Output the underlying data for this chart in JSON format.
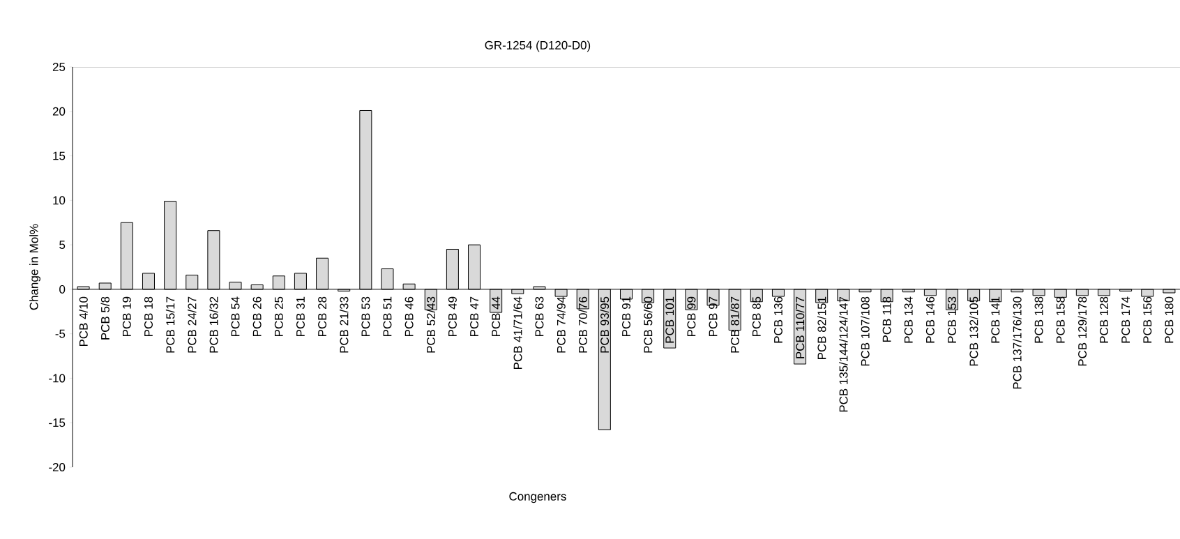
{
  "chart_data": {
    "type": "bar",
    "title": "GR-1254 (D120-D0)",
    "xlabel": "Congeners",
    "ylabel": "Change in Mol%",
    "categories": [
      "PCB 4/10",
      "PCB 5/8",
      "PCB 19",
      "PCB 18",
      "PCB 15/17",
      "PCB 24/27",
      "PCB 16/32",
      "PCB 54",
      "PCB 26",
      "PCB 25",
      "PCB 31",
      "PCB 28",
      "PCB 21/33",
      "PCB 53",
      "PCB 51",
      "PCB 46",
      "PCB 52/43",
      "PCB 49",
      "PCB 47",
      "PCB 44",
      "PCB 41/71/64",
      "PCB 63",
      "PCB 74/94",
      "PCB 70/76",
      "PCB 93/95",
      "PCB 91",
      "PCB 56/60",
      "PCB 101",
      "PCB 99",
      "PCB 97",
      "PCB 81/87",
      "PCB 85",
      "PCB 136",
      "PCB 110/77",
      "PCB 82/151",
      "PCB 135/144/124/147",
      "PCB 107/108",
      "PCB 118",
      "PCB 134",
      "PCB 146",
      "PCB 153",
      "PCB 132/105",
      "PCB 141",
      "PCB 137/176/130",
      "PCB 138",
      "PCB 158",
      "PCB 129/178",
      "PCB 128",
      "PCB 174",
      "PCB 156",
      "PCB 180"
    ],
    "values": [
      0.3,
      0.7,
      7.5,
      1.8,
      9.9,
      1.6,
      6.6,
      0.8,
      0.5,
      1.5,
      1.8,
      3.5,
      -0.2,
      20.1,
      2.3,
      0.6,
      -2.3,
      4.5,
      5.0,
      -2.6,
      -0.5,
      0.3,
      -0.8,
      -2.2,
      -15.8,
      -1.1,
      -1.5,
      -6.6,
      -2.3,
      -1.8,
      -4.6,
      -1.4,
      -0.8,
      -8.4,
      -1.5,
      -1.3,
      -0.3,
      -1.4,
      -0.3,
      -0.7,
      -2.3,
      -1.3,
      -1.4,
      -0.3,
      -0.7,
      -0.9,
      -0.7,
      -0.7,
      -0.2,
      -0.8,
      -0.4
    ],
    "color": "#d9d9d9",
    "ylim": [
      -20,
      25
    ],
    "yticks": [
      -20,
      -15,
      -10,
      -5,
      0,
      5,
      10,
      15,
      20,
      25
    ],
    "grid": false
  }
}
